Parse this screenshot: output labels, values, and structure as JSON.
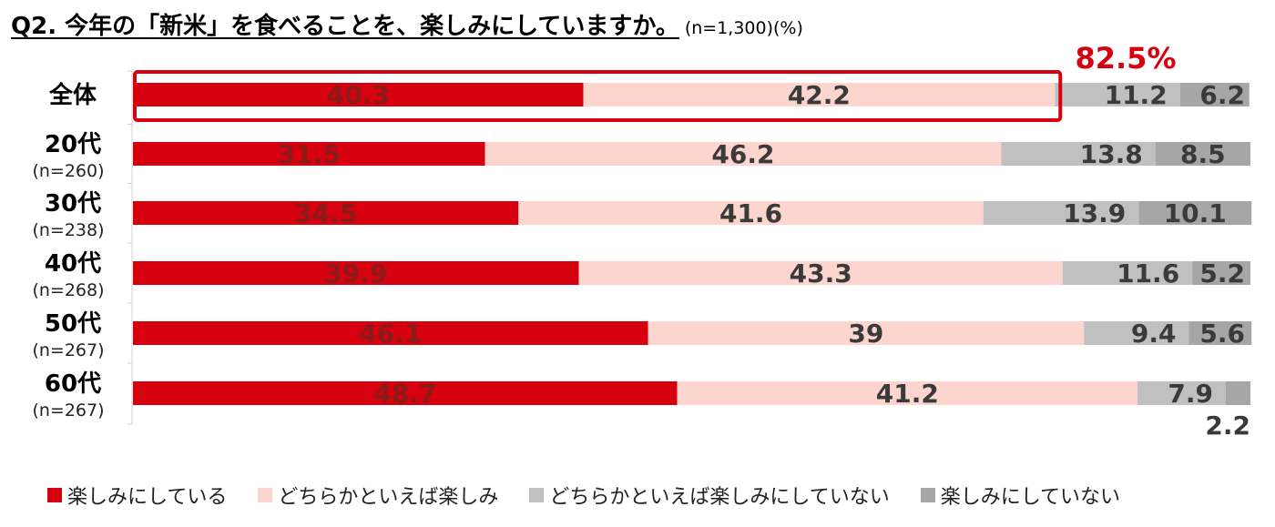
{
  "title": {
    "question": "Q2. 今年の「新米」を食べることを、楽しみにしていますか。",
    "note": "(n=1,300)(%)"
  },
  "chart_data": {
    "type": "bar",
    "orientation": "horizontal",
    "stacked": true,
    "percent_stacked": true,
    "xlim": [
      0,
      100
    ],
    "grid": false,
    "legend_position": "bottom",
    "categories": [
      "全体",
      "20代",
      "30代",
      "40代",
      "50代",
      "60代"
    ],
    "category_notes": [
      "",
      "(n=260)",
      "(n=238)",
      "(n=268)",
      "(n=267)",
      "(n=267)"
    ],
    "series": [
      {
        "name": "楽しみにしている",
        "color": "#d7000f",
        "label_color": "#8b1a1a",
        "values": [
          40.3,
          31.5,
          34.5,
          39.9,
          46.1,
          48.7
        ],
        "labels": [
          "40.3",
          "31.5",
          "34.5",
          "39.9",
          "46.1",
          "48.7"
        ]
      },
      {
        "name": "どちらかといえば楽しみ",
        "color": "#fdd5cf",
        "label_color": "#3a3a3a",
        "values": [
          42.2,
          46.2,
          41.6,
          43.3,
          39,
          41.2
        ],
        "labels": [
          "42.2",
          "46.2",
          "41.6",
          "43.3",
          "39",
          "41.2"
        ]
      },
      {
        "name": "どちらかといえば楽しみにしていない",
        "color": "#c0c0c0",
        "label_color": "#3a3a3a",
        "values": [
          11.2,
          13.8,
          13.9,
          11.6,
          9.4,
          7.9
        ],
        "labels": [
          "11.2",
          "13.8",
          "13.9",
          "11.6",
          "9.4",
          "7.9"
        ]
      },
      {
        "name": "楽しみにしていない",
        "color": "#a6a6a6",
        "label_color": "#3a3a3a",
        "values": [
          6.2,
          8.5,
          10.1,
          5.2,
          5.6,
          2.2
        ],
        "labels": [
          "6.2",
          "8.5",
          "10.1",
          "5.2",
          "5.6",
          "2.2"
        ]
      }
    ],
    "highlight": {
      "category": "全体",
      "label": "82.5%",
      "color": "#d7000f"
    }
  }
}
